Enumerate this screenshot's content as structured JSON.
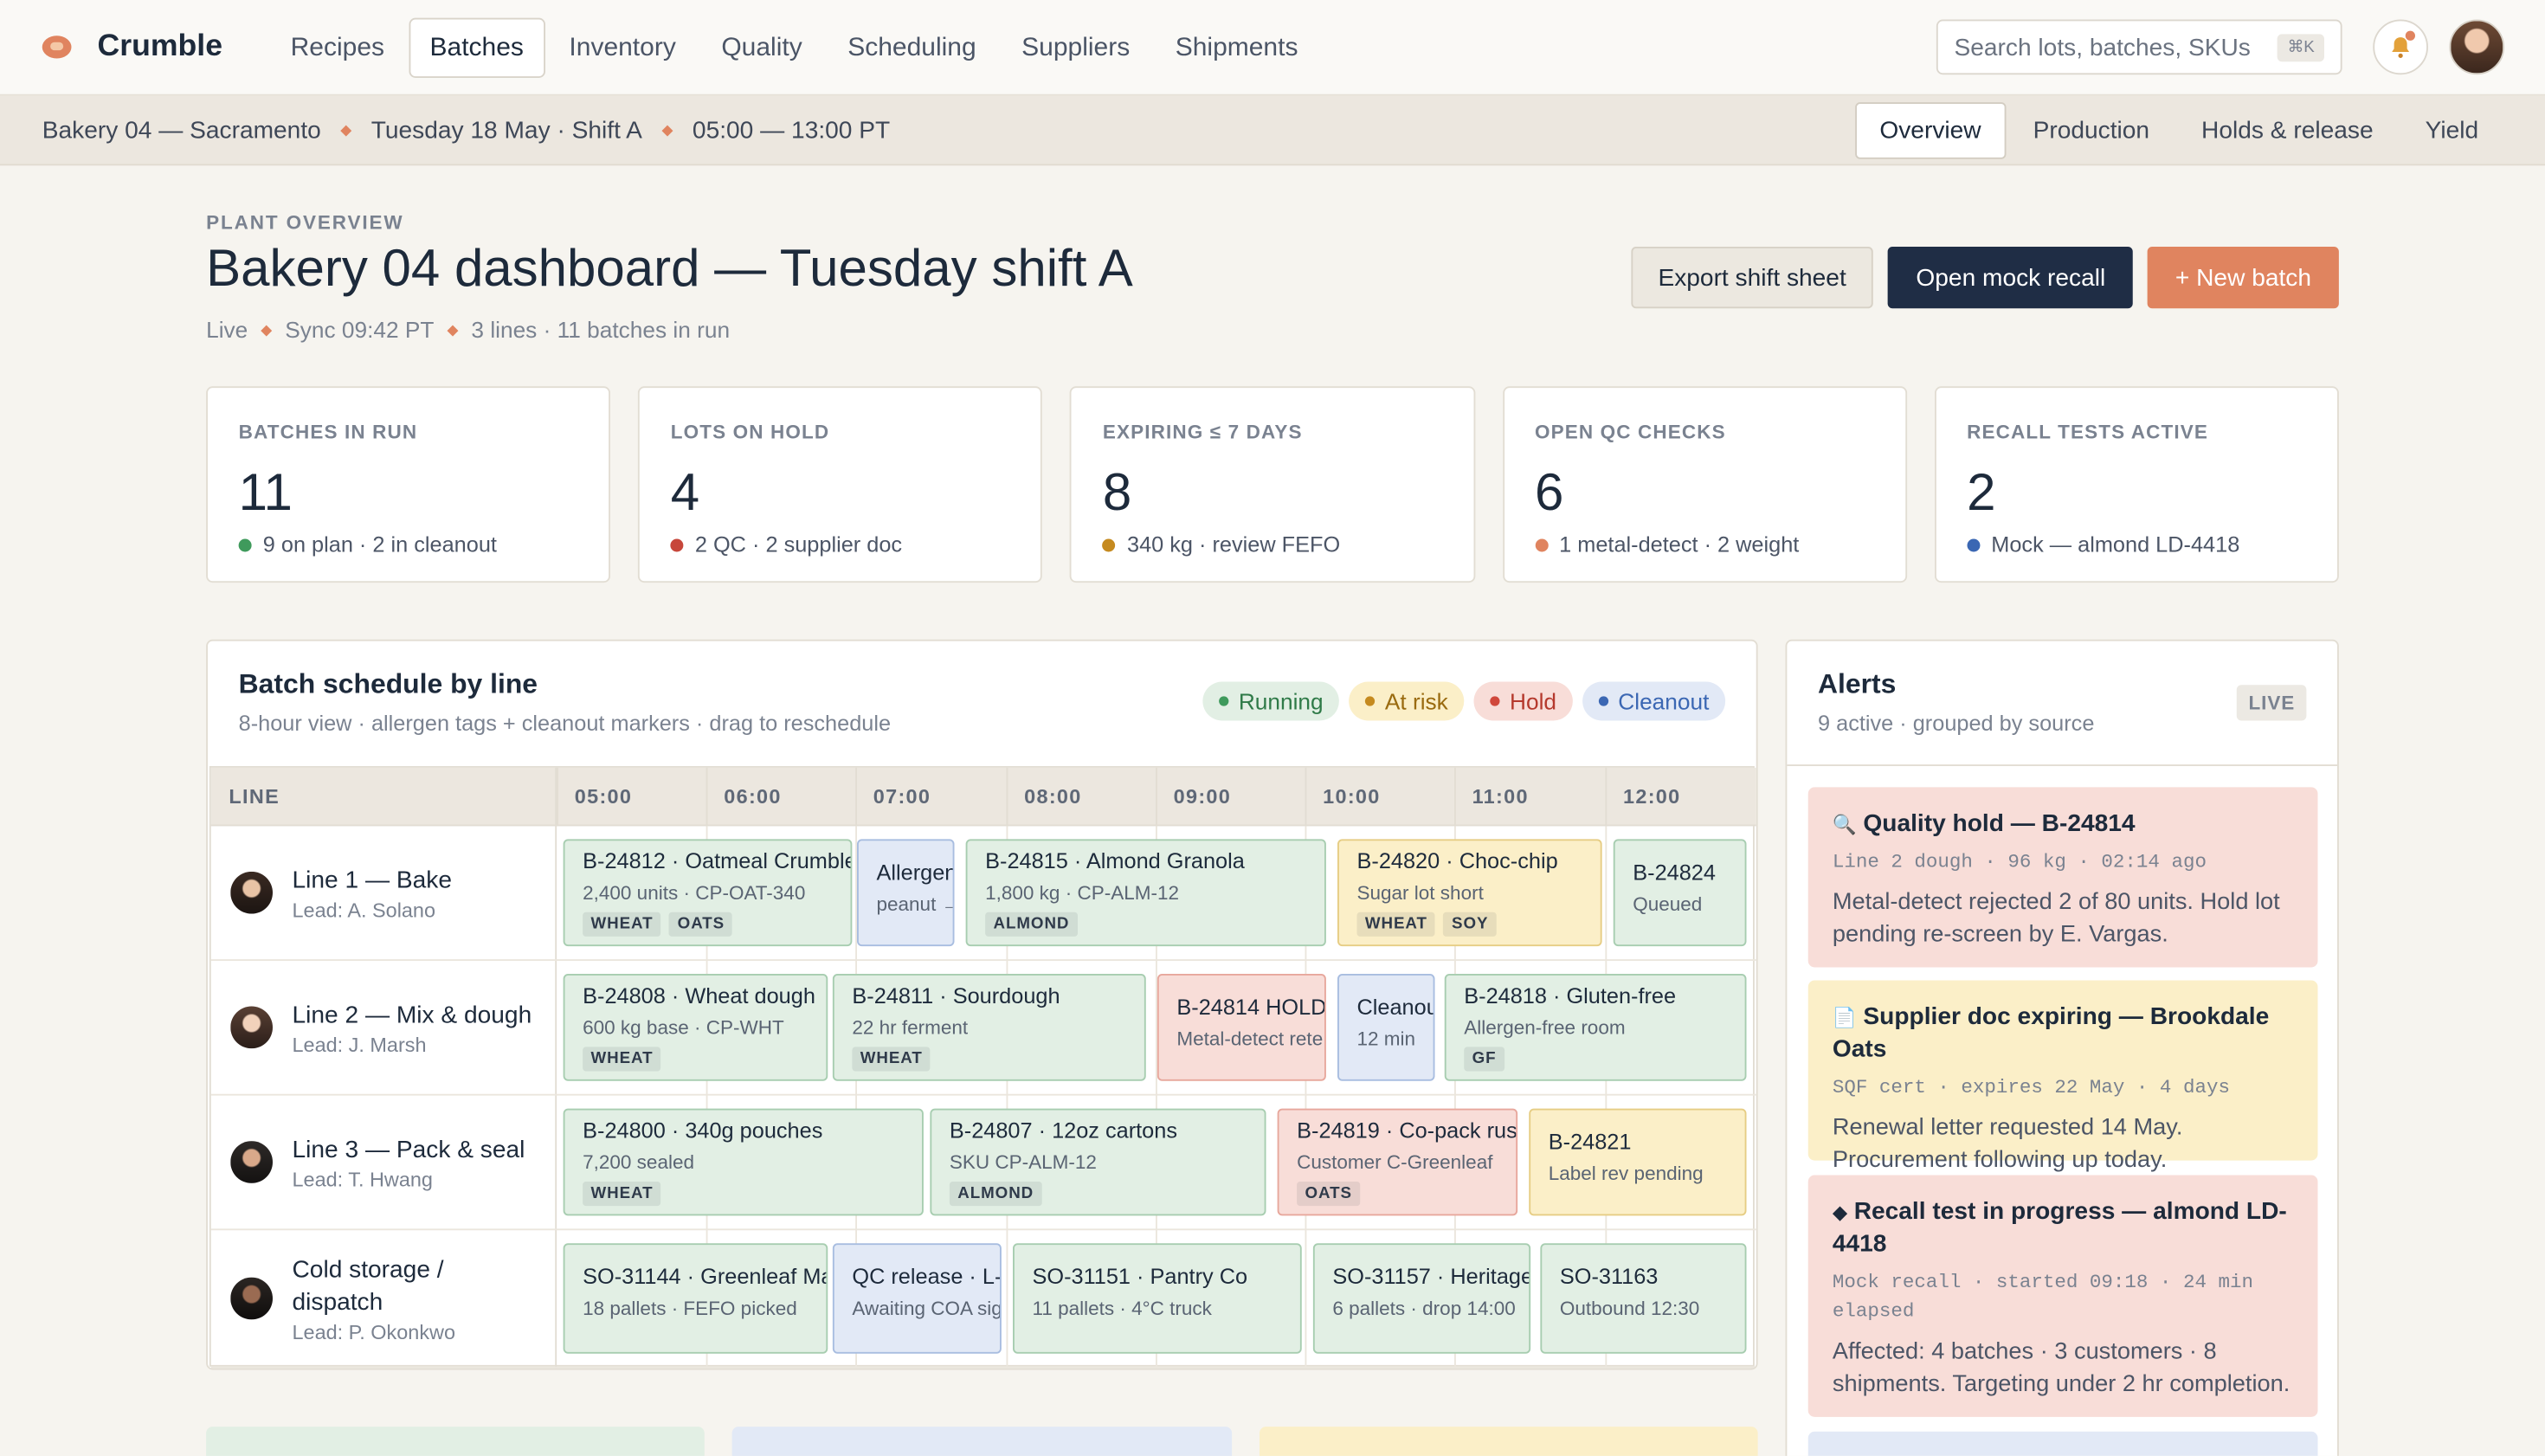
{
  "app": {
    "name": "Crumble"
  },
  "nav": [
    "Recipes",
    "Batches",
    "Inventory",
    "Quality",
    "Scheduling",
    "Suppliers",
    "Shipments"
  ],
  "nav_active": "Batches",
  "search": {
    "placeholder": "Search lots, batches, SKUs",
    "shortcut": "⌘K"
  },
  "context": {
    "plant": "Bakery 04 — Sacramento",
    "date_shift": "Tuesday 18 May · Shift A",
    "hours": "05:00 — 13:00 PT"
  },
  "subtabs": [
    "Overview",
    "Production",
    "Holds & release",
    "Yield"
  ],
  "subtab_active": "Overview",
  "header": {
    "eyebrow": "PLANT OVERVIEW",
    "title": "Bakery 04 dashboard — Tuesday shift A",
    "meta": [
      "Live",
      "Sync 09:42 PT",
      "3 lines · 11 batches in run"
    ]
  },
  "actions": {
    "export": "Export shift sheet",
    "recall": "Open mock recall",
    "new_batch": "+ New batch"
  },
  "kpis": [
    {
      "label": "BATCHES IN RUN",
      "value": "11",
      "note": "9 on plan · 2 in cleanout",
      "color": "#3f9a5c"
    },
    {
      "label": "LOTS ON HOLD",
      "value": "4",
      "note": "2 QC · 2 supplier doc",
      "color": "#c7473b"
    },
    {
      "label": "EXPIRING ≤ 7 DAYS",
      "value": "8",
      "note": "340 kg · review FEFO",
      "color": "#c58a1f"
    },
    {
      "label": "OPEN QC CHECKS",
      "value": "6",
      "note": "1 metal-detect · 2 weight",
      "color": "#e0845f"
    },
    {
      "label": "RECALL TESTS ACTIVE",
      "value": "2",
      "note": "Mock — almond LD-4418",
      "color": "#3b67b3"
    }
  ],
  "schedule": {
    "title": "Batch schedule by line",
    "subtitle": "8-hour view · allergen tags + cleanout markers · drag to reschedule",
    "legend": [
      {
        "label": "Running",
        "bg": "#e2efe4",
        "fg": "#2f7a48",
        "dot": "#3f9a5c"
      },
      {
        "label": "At risk",
        "bg": "#fbefc8",
        "fg": "#9a6b10",
        "dot": "#c58a1f"
      },
      {
        "label": "Hold",
        "bg": "#f8ddd8",
        "fg": "#b5392d",
        "dot": "#d0473b"
      },
      {
        "label": "Cleanout",
        "bg": "#e2e9f6",
        "fg": "#3b67b3",
        "dot": "#3b67b3"
      }
    ],
    "line_header": "LINE",
    "hours": [
      "05:00",
      "06:00",
      "07:00",
      "08:00",
      "09:00",
      "10:00",
      "11:00",
      "12:00"
    ],
    "lines": [
      {
        "name": "Line 1 — Bake",
        "lead": "Lead: A. Solano",
        "blocks": [
          {
            "title": "B-24812 · Oatmeal Crumble",
            "sub": "2,400 units · CP-OAT-340",
            "tags": [
              "WHEAT",
              "OATS"
            ],
            "status": "run"
          },
          {
            "title": "Allergen",
            "sub": "peanut →",
            "tags": [],
            "status": "clean"
          },
          {
            "title": "B-24815 · Almond Granola",
            "sub": "1,800 kg · CP-ALM-12",
            "tags": [
              "ALMOND"
            ],
            "status": "run"
          },
          {
            "title": "B-24820 · Choc-chip",
            "sub": "Sugar lot short",
            "tags": [
              "WHEAT",
              "SOY"
            ],
            "status": "risk"
          },
          {
            "title": "B-24824",
            "sub": "Queued",
            "tags": [],
            "status": "run"
          }
        ]
      },
      {
        "name": "Line 2 — Mix & dough",
        "lead": "Lead: J. Marsh",
        "blocks": [
          {
            "title": "B-24808 · Wheat dough",
            "sub": "600 kg base · CP-WHT",
            "tags": [
              "WHEAT"
            ],
            "status": "run"
          },
          {
            "title": "B-24811 · Sourdough",
            "sub": "22 hr ferment",
            "tags": [
              "WHEAT"
            ],
            "status": "run"
          },
          {
            "title": "B-24814 HOLD",
            "sub": "Metal-detect rete",
            "tags": [],
            "status": "hold"
          },
          {
            "title": "Cleanou",
            "sub": "12 min",
            "tags": [],
            "status": "clean"
          },
          {
            "title": "B-24818 · Gluten-free",
            "sub": "Allergen-free room",
            "tags": [
              "GF"
            ],
            "status": "run"
          }
        ]
      },
      {
        "name": "Line 3 — Pack & seal",
        "lead": "Lead: T. Hwang",
        "blocks": [
          {
            "title": "B-24800 · 340g pouches",
            "sub": "7,200 sealed",
            "tags": [
              "WHEAT"
            ],
            "status": "run"
          },
          {
            "title": "B-24807 · 12oz cartons",
            "sub": "SKU CP-ALM-12",
            "tags": [
              "ALMOND"
            ],
            "status": "run"
          },
          {
            "title": "B-24819 · Co-pack rusl",
            "sub": "Customer C-Greenleaf",
            "tags": [
              "OATS"
            ],
            "status": "hold"
          },
          {
            "title": "B-24821",
            "sub": "Label rev pending",
            "tags": [],
            "status": "risk"
          }
        ]
      },
      {
        "name": "Cold storage / dispatch",
        "lead": "Lead: P. Okonkwo",
        "blocks": [
          {
            "title": "SO-31144 · Greenleaf Mar",
            "sub": "18 pallets · FEFO picked",
            "tags": [],
            "status": "run"
          },
          {
            "title": "QC release · L-8",
            "sub": "Awaiting COA sig",
            "tags": [],
            "status": "clean"
          },
          {
            "title": "SO-31151 · Pantry Co",
            "sub": "11 pallets · 4°C truck",
            "tags": [],
            "status": "run"
          },
          {
            "title": "SO-31157 · Heritage",
            "sub": "6 pallets · drop 14:00",
            "tags": [],
            "status": "run"
          },
          {
            "title": "SO-31163",
            "sub": "Outbound 12:30",
            "tags": [],
            "status": "run"
          }
        ]
      }
    ]
  },
  "alerts": {
    "title": "Alerts",
    "subtitle": "9 active · grouped by source",
    "badge": "LIVE",
    "items": [
      {
        "icon": "🔍",
        "title": "Quality hold — B-24814",
        "meta": "Line 2 dough · 96 kg · 02:14 ago",
        "body": "Metal-detect rejected 2 of 80 units. Hold lot pending re-screen by E. Vargas.",
        "tone": "red"
      },
      {
        "icon": "📄",
        "title": "Supplier doc expiring — Brookdale Oats",
        "meta": "SQF cert · expires 22 May · 4 days",
        "body": "Renewal letter requested 14 May. Procurement following up today.",
        "tone": "amber"
      },
      {
        "icon": "◆",
        "title": "Recall test in progress — almond LD-4418",
        "meta": "Mock recall · started 09:18 · 24 min elapsed",
        "body": "Affected: 4 batches · 3 customers · 8 shipments. Targeting under 2 hr completion.",
        "tone": "red"
      }
    ]
  }
}
